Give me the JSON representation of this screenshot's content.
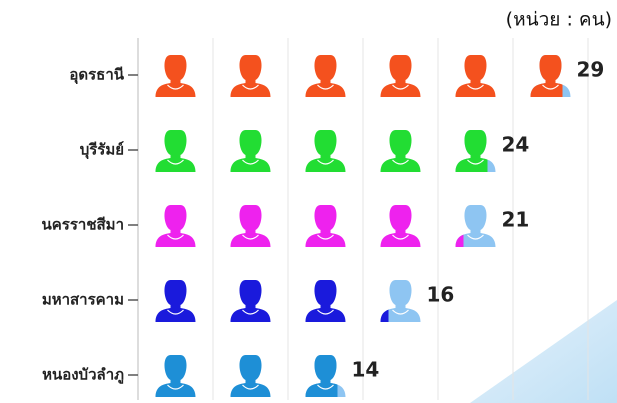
{
  "chart_data": {
    "type": "pictogram",
    "unit_label": "(หน่วย : คน)",
    "categories": [
      "อุดรธานี",
      "บุรีรัมย์",
      "นครราชสีมา",
      "มหาสารคาม",
      "หนองบัวลำภู"
    ],
    "values": [
      29,
      24,
      21,
      16,
      14
    ],
    "colors": [
      "#f4511e",
      "#22dd33",
      "#ee22ee",
      "#1a1adc",
      "#1e8fd6"
    ],
    "remainder_color": "#8ec5f2",
    "xlim": [
      0,
      30
    ],
    "xticks": [
      0,
      5,
      10,
      15,
      20,
      25,
      30
    ],
    "grid": true
  }
}
